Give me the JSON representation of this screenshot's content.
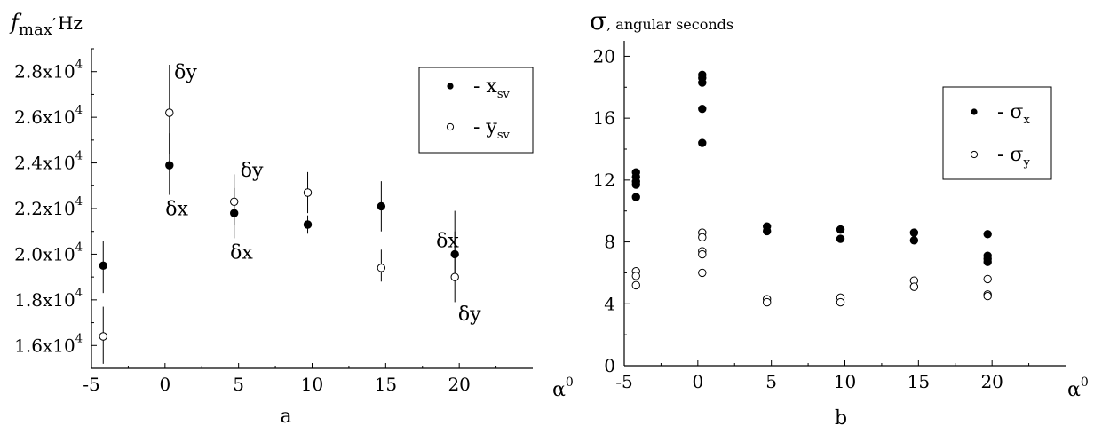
{
  "chart_data": [
    {
      "type": "scatter",
      "panel_label": "a",
      "ylabel_symbol": "f",
      "ylabel_sub": "max",
      "ylabel_unit": "Hz",
      "xlabel": "α",
      "xlabel_sup": "0",
      "xlim": [
        -5,
        25
      ],
      "ylim": [
        15000,
        29000
      ],
      "x_ticks": [
        -5,
        0,
        5,
        10,
        15,
        20
      ],
      "y_ticks": [
        {
          "value": 16000,
          "mant": "1.6x10",
          "exp": "4"
        },
        {
          "value": 18000,
          "mant": "1.8x10",
          "exp": "4"
        },
        {
          "value": 20000,
          "mant": "2.0x10",
          "exp": "4"
        },
        {
          "value": 22000,
          "mant": "2.2x10",
          "exp": "4"
        },
        {
          "value": 24000,
          "mant": "2.4x10",
          "exp": "4"
        },
        {
          "value": 26000,
          "mant": "2.6x10",
          "exp": "4"
        },
        {
          "value": 28000,
          "mant": "2.8x10",
          "exp": "4"
        }
      ],
      "series": [
        {
          "name": "- x",
          "name_sub": "sv",
          "marker": "filled",
          "points": [
            {
              "x": -4.2,
              "y": 19500,
              "lo": 18300,
              "hi": 20600
            },
            {
              "x": 0.3,
              "y": 23900,
              "lo": 22600,
              "hi": 25300
            },
            {
              "x": 4.7,
              "y": 21800,
              "lo": 20700,
              "hi": 22900
            },
            {
              "x": 9.7,
              "y": 21300,
              "lo": 20900,
              "hi": 21700
            },
            {
              "x": 14.7,
              "y": 22100,
              "lo": 21000,
              "hi": 23200
            },
            {
              "x": 19.7,
              "y": 20000,
              "lo": 19000,
              "hi": 21000
            }
          ]
        },
        {
          "name": "- y",
          "name_sub": "sv",
          "marker": "open",
          "points": [
            {
              "x": -4.2,
              "y": 16400,
              "lo": 15200,
              "hi": 17700
            },
            {
              "x": 0.3,
              "y": 26200,
              "lo": 24400,
              "hi": 28300
            },
            {
              "x": 4.7,
              "y": 22300,
              "lo": 21300,
              "hi": 23500
            },
            {
              "x": 9.7,
              "y": 22700,
              "lo": 21800,
              "hi": 23600
            },
            {
              "x": 14.7,
              "y": 19400,
              "lo": 18800,
              "hi": 20200
            },
            {
              "x": 19.7,
              "y": 19000,
              "lo": 17900,
              "hi": 21900
            }
          ]
        }
      ],
      "annotations": [
        {
          "text": "δy",
          "x": 1.4,
          "y": 27700
        },
        {
          "text": "δx",
          "x": 0.8,
          "y": 21700
        },
        {
          "text": "δy",
          "x": 5.9,
          "y": 23400
        },
        {
          "text": "δx",
          "x": 5.2,
          "y": 19800
        },
        {
          "text": "δx",
          "x": 19.2,
          "y": 20300
        },
        {
          "text": "δy",
          "x": 20.7,
          "y": 17100
        }
      ],
      "legend_placement": "top-right"
    },
    {
      "type": "scatter",
      "panel_label": "b",
      "ylabel_symbol": "σ",
      "ylabel_unit": ", angular seconds",
      "xlabel": "α",
      "xlabel_sup": "0",
      "xlim": [
        -5,
        25
      ],
      "ylim": [
        0,
        21
      ],
      "x_ticks": [
        -5,
        0,
        5,
        10,
        15,
        20
      ],
      "y_ticks": [
        0,
        4,
        8,
        12,
        16,
        20
      ],
      "series": [
        {
          "name": "- σ",
          "name_sub": "x",
          "marker": "filled",
          "points": [
            {
              "x": -4.2,
              "y": 12.5
            },
            {
              "x": -4.2,
              "y": 12.2
            },
            {
              "x": -4.2,
              "y": 11.9
            },
            {
              "x": -4.2,
              "y": 11.7
            },
            {
              "x": -4.2,
              "y": 10.9
            },
            {
              "x": 0.3,
              "y": 18.8
            },
            {
              "x": 0.3,
              "y": 18.6
            },
            {
              "x": 0.3,
              "y": 18.3
            },
            {
              "x": 0.3,
              "y": 16.6
            },
            {
              "x": 0.3,
              "y": 14.4
            },
            {
              "x": 4.7,
              "y": 9.0
            },
            {
              "x": 4.7,
              "y": 8.7
            },
            {
              "x": 9.7,
              "y": 8.8
            },
            {
              "x": 9.7,
              "y": 8.2
            },
            {
              "x": 14.7,
              "y": 8.6
            },
            {
              "x": 14.7,
              "y": 8.1
            },
            {
              "x": 19.7,
              "y": 8.5
            },
            {
              "x": 19.7,
              "y": 7.1
            },
            {
              "x": 19.7,
              "y": 6.9
            },
            {
              "x": 19.7,
              "y": 6.7
            }
          ]
        },
        {
          "name": "- σ",
          "name_sub": "y",
          "marker": "open",
          "points": [
            {
              "x": -4.2,
              "y": 6.1
            },
            {
              "x": -4.2,
              "y": 5.8
            },
            {
              "x": -4.2,
              "y": 5.2
            },
            {
              "x": 0.3,
              "y": 8.6
            },
            {
              "x": 0.3,
              "y": 8.3
            },
            {
              "x": 0.3,
              "y": 7.4
            },
            {
              "x": 0.3,
              "y": 7.2
            },
            {
              "x": 0.3,
              "y": 6.0
            },
            {
              "x": 4.7,
              "y": 4.3
            },
            {
              "x": 4.7,
              "y": 4.1
            },
            {
              "x": 9.7,
              "y": 4.4
            },
            {
              "x": 9.7,
              "y": 4.1
            },
            {
              "x": 14.7,
              "y": 5.5
            },
            {
              "x": 14.7,
              "y": 5.1
            },
            {
              "x": 19.7,
              "y": 5.6
            },
            {
              "x": 19.7,
              "y": 4.6
            },
            {
              "x": 19.7,
              "y": 4.5
            }
          ]
        }
      ],
      "legend_placement": "top-right"
    }
  ]
}
